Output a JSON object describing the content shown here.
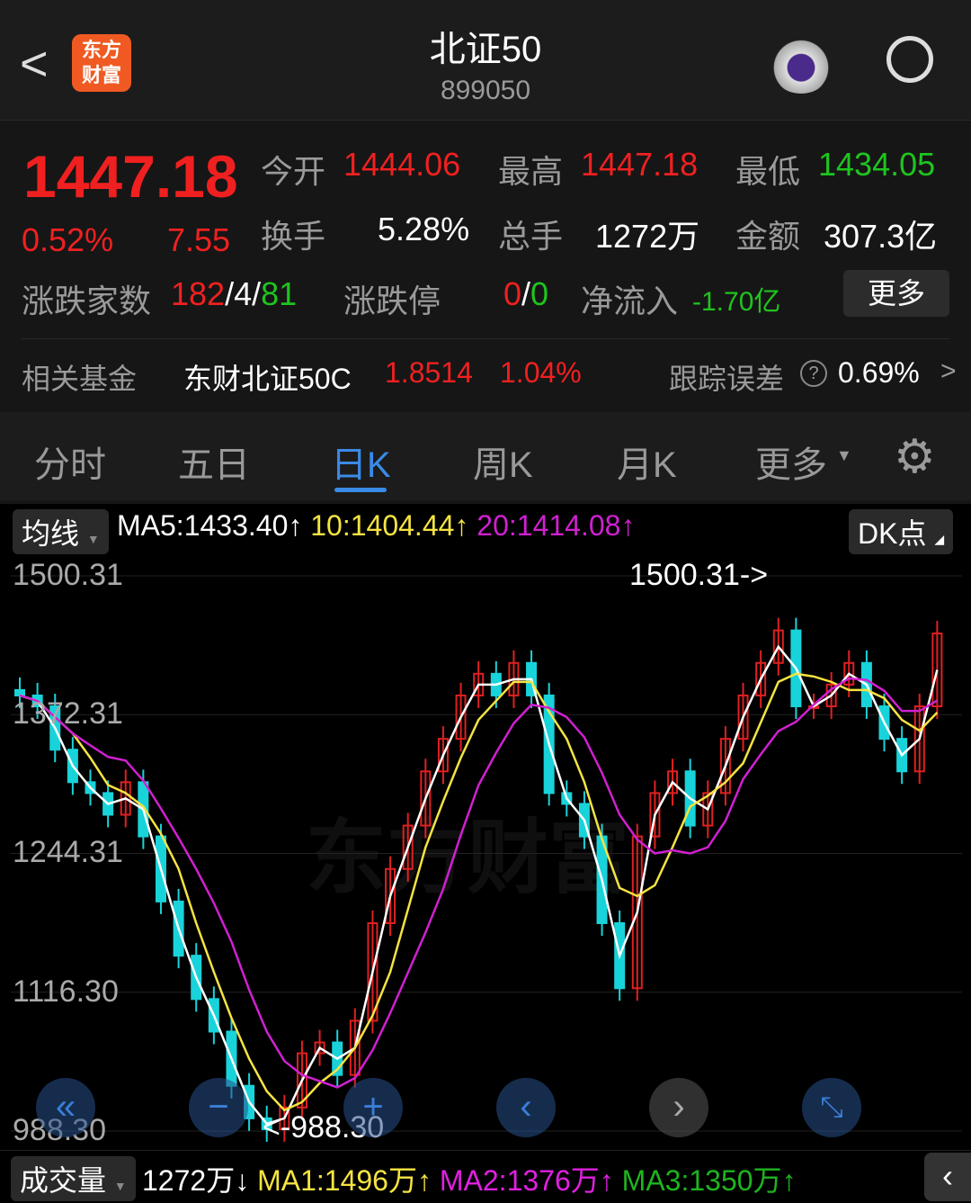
{
  "header": {
    "title": "北证50",
    "code": "899050",
    "logo_text": "东方财富"
  },
  "quote": {
    "price": "1447.18",
    "change_pct": "0.52%",
    "change": "7.55",
    "open_label": "今开",
    "open": "1444.06",
    "high_label": "最高",
    "high": "1447.18",
    "low_label": "最低",
    "low": "1434.05",
    "turnover_label": "换手",
    "turnover": "5.28%",
    "volume_label": "总手",
    "volume": "1272万",
    "amount_label": "金额",
    "amount": "307.3亿",
    "breadth_label": "涨跌家数",
    "up": "182",
    "flat": "4",
    "down": "81",
    "limit_label": "涨跌停",
    "limit_up": "0",
    "limit_down": "0",
    "netflow_label": "净流入",
    "netflow": "-1.70亿",
    "more": "更多"
  },
  "fund": {
    "label": "相关基金",
    "name": "东财北证50C",
    "nav": "1.8514",
    "pct": "1.04%",
    "track_label": "跟踪误差",
    "track": "0.69%"
  },
  "tabs": [
    {
      "label": "分时"
    },
    {
      "label": "五日"
    },
    {
      "label": "日K",
      "active": true
    },
    {
      "label": "周K"
    },
    {
      "label": "月K"
    },
    {
      "label": "更多"
    }
  ],
  "ma_bar": {
    "select": "均线",
    "ma5": "MA5:1433.40↑",
    "ma10": "10:1404.44↑",
    "ma20": "20:1414.08↑",
    "dk": "DK点"
  },
  "vol_bar": {
    "select": "成交量",
    "vol": "1272万↓",
    "ma1": "MA1:1496万↑",
    "ma2": "MA2:1376万↑",
    "ma3": "MA3:1350万↑"
  },
  "watermark": "东方财富",
  "chart_data": {
    "type": "candlestick",
    "y_ticks": [
      "1500.31",
      "1372.31",
      "1244.31",
      "1116.30",
      "988.30"
    ],
    "ylim": [
      988.3,
      1500.31
    ],
    "max_label": "1500.31->",
    "min_label": "<-988.30",
    "closes": [
      1390,
      1380,
      1340,
      1310,
      1300,
      1280,
      1310,
      1260,
      1200,
      1150,
      1110,
      1080,
      1030,
      1000,
      990,
      1010,
      1060,
      1070,
      1040,
      1090,
      1180,
      1230,
      1270,
      1320,
      1350,
      1390,
      1410,
      1390,
      1420,
      1390,
      1300,
      1290,
      1260,
      1180,
      1120,
      1260,
      1300,
      1320,
      1270,
      1300,
      1350,
      1390,
      1420,
      1450,
      1380,
      1380,
      1400,
      1420,
      1380,
      1350,
      1320,
      1380,
      1447.18
    ],
    "colors": {
      "up": "#e02020",
      "down": "#19d3da",
      "ma5": "#ffffff",
      "ma10": "#f5e342",
      "ma20": "#d020d0"
    }
  }
}
